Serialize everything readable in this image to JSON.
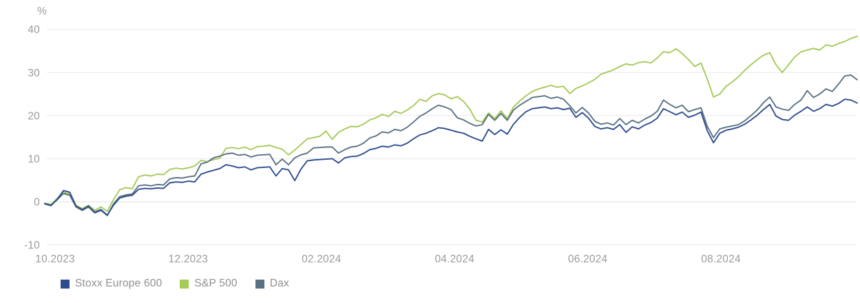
{
  "chart_data": {
    "type": "line",
    "title": "",
    "unit_label": "%",
    "ylabel": "%",
    "ylim": [
      -10,
      40
    ],
    "y_ticks": [
      40,
      30,
      20,
      10,
      0,
      -10
    ],
    "x_tick_labels": [
      "10.2023",
      "12.2023",
      "02.2024",
      "04.2024",
      "06.2024",
      "08.2024"
    ],
    "grid": "horizontal-light",
    "legend_position": "bottom-left",
    "colors": {
      "grid_line": "#e8e8e8",
      "zero_line": "#dedede",
      "tick_text": "#9b9b9b",
      "legend_text": "#8f8f8f"
    },
    "series": [
      {
        "name": "Stoxx Europe 600",
        "color": "#2e4c8e",
        "values": [
          -0.5,
          -0.9,
          0.6,
          2.6,
          2.2,
          -1.0,
          -1.8,
          -1.0,
          -2.4,
          -1.8,
          -3.1,
          -0.8,
          0.9,
          1.3,
          1.5,
          2.9,
          3.1,
          3.0,
          3.2,
          3.1,
          4.4,
          4.6,
          4.5,
          4.8,
          4.6,
          6.4,
          6.9,
          7.3,
          7.7,
          8.6,
          8.3,
          7.9,
          8.1,
          7.4,
          7.9,
          8.0,
          8.1,
          6.0,
          7.7,
          7.4,
          4.9,
          7.6,
          9.5,
          9.7,
          9.8,
          9.9,
          10.0,
          9.0,
          10.2,
          10.5,
          10.6,
          11.2,
          12.1,
          12.4,
          12.9,
          12.7,
          13.2,
          13.0,
          13.6,
          14.6,
          15.5,
          15.9,
          16.5,
          17.2,
          17.0,
          16.6,
          16.2,
          15.9,
          15.2,
          14.6,
          14.1,
          16.8,
          15.6,
          16.7,
          15.7,
          18.0,
          19.6,
          20.9,
          21.6,
          21.8,
          22.0,
          21.6,
          21.8,
          21.4,
          21.7,
          19.6,
          20.7,
          19.4,
          17.5,
          16.9,
          17.2,
          16.8,
          17.9,
          16.1,
          17.4,
          16.9,
          17.8,
          18.4,
          19.4,
          21.6,
          20.9,
          20.2,
          20.8,
          19.6,
          20.1,
          20.8,
          16.5,
          13.7,
          15.9,
          16.6,
          16.9,
          17.3,
          18.0,
          19.0,
          20.1,
          21.4,
          22.6,
          19.9,
          19.1,
          18.9,
          20.1,
          21.0,
          22.0,
          21.0,
          21.6,
          22.6,
          22.2,
          22.8,
          23.8,
          23.6,
          22.9
        ]
      },
      {
        "name": "S&P 500",
        "color": "#a5ca58",
        "values": [
          -0.3,
          -0.6,
          0.8,
          2.2,
          1.8,
          -0.8,
          -1.6,
          -0.8,
          -2.0,
          -1.2,
          -2.2,
          0.5,
          2.8,
          3.3,
          3.0,
          5.8,
          6.2,
          6.0,
          6.4,
          6.3,
          7.5,
          7.8,
          7.6,
          7.9,
          8.3,
          9.6,
          9.3,
          9.8,
          10.1,
          12.4,
          12.6,
          12.3,
          12.7,
          12.1,
          12.8,
          12.9,
          13.1,
          12.6,
          12.2,
          10.9,
          12.0,
          13.3,
          14.6,
          14.9,
          15.2,
          16.4,
          14.5,
          16.1,
          16.9,
          17.5,
          17.4,
          18.0,
          19.0,
          19.5,
          20.3,
          19.8,
          21.0,
          20.5,
          21.3,
          22.3,
          23.8,
          23.3,
          24.6,
          25.1,
          24.8,
          23.9,
          24.4,
          23.3,
          21.5,
          18.9,
          18.5,
          20.6,
          19.3,
          21.1,
          19.3,
          22.0,
          23.4,
          24.6,
          25.6,
          26.2,
          26.6,
          27.0,
          26.6,
          26.8,
          25.1,
          26.3,
          26.9,
          27.6,
          28.4,
          29.6,
          30.1,
          30.6,
          31.4,
          32.0,
          31.7,
          32.3,
          32.5,
          32.2,
          33.4,
          34.8,
          34.6,
          35.5,
          34.4,
          33.0,
          31.4,
          32.2,
          28.5,
          24.3,
          25.0,
          26.8,
          27.8,
          29.0,
          30.5,
          31.8,
          33.0,
          34.0,
          34.6,
          31.8,
          30.0,
          31.8,
          33.6,
          34.8,
          35.2,
          35.6,
          35.2,
          36.4,
          36.1,
          36.7,
          37.2,
          37.9,
          38.4
        ]
      },
      {
        "name": "Dax",
        "color": "#5a7183",
        "values": [
          -0.4,
          -0.8,
          0.5,
          1.9,
          1.5,
          -1.2,
          -2.0,
          -1.2,
          -2.6,
          -2.0,
          -3.2,
          -0.5,
          1.2,
          1.6,
          1.8,
          3.7,
          3.9,
          3.7,
          4.0,
          3.9,
          5.3,
          5.6,
          5.5,
          5.8,
          6.0,
          8.8,
          9.2,
          10.2,
          10.6,
          11.1,
          11.3,
          10.8,
          11.0,
          10.4,
          10.8,
          10.9,
          11.0,
          8.6,
          9.9,
          8.6,
          10.2,
          10.9,
          11.3,
          12.5,
          12.6,
          12.7,
          12.7,
          11.3,
          12.1,
          12.7,
          12.9,
          13.6,
          14.8,
          15.3,
          16.2,
          16.0,
          16.8,
          16.5,
          17.3,
          18.5,
          19.8,
          20.6,
          21.6,
          22.4,
          22.0,
          21.4,
          19.5,
          19.0,
          18.2,
          17.6,
          17.9,
          20.3,
          18.9,
          20.5,
          18.9,
          21.3,
          22.4,
          23.3,
          24.2,
          24.4,
          24.6,
          24.0,
          24.3,
          23.8,
          22.3,
          20.6,
          21.9,
          20.6,
          18.7,
          18.0,
          18.3,
          17.8,
          19.3,
          17.9,
          18.9,
          18.3,
          19.2,
          19.9,
          21.0,
          23.6,
          22.6,
          21.8,
          22.4,
          20.9,
          21.4,
          21.8,
          17.5,
          14.9,
          16.9,
          17.3,
          17.6,
          17.9,
          18.8,
          20.0,
          21.3,
          23.0,
          24.3,
          22.0,
          21.5,
          21.2,
          22.6,
          23.6,
          25.8,
          24.2,
          25.0,
          26.2,
          25.6,
          27.3,
          29.2,
          29.4,
          28.3
        ]
      }
    ]
  }
}
